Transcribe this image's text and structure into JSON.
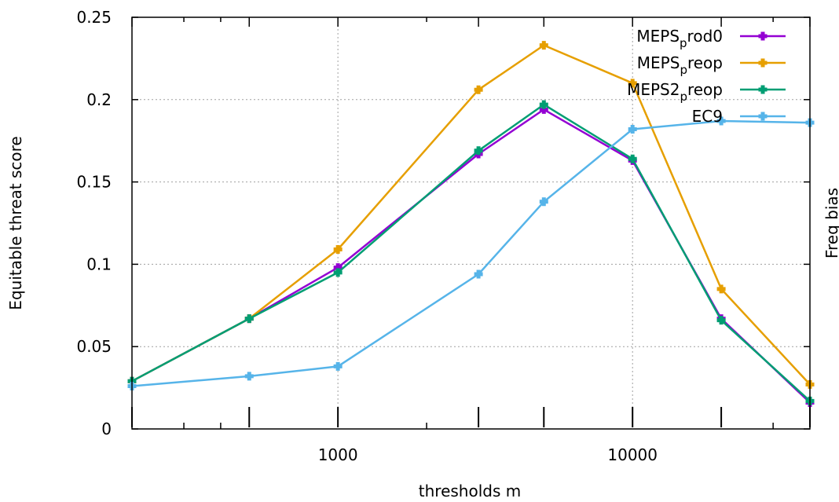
{
  "chart_data": {
    "type": "line",
    "title": "",
    "xlabel": "thresholds m",
    "ylabel": "Equitable threat score",
    "y2label": "Freq bias",
    "xscale": "log",
    "xlim": [
      200,
      40000
    ],
    "ylim": [
      0,
      0.25
    ],
    "grid": true,
    "legend_position": "top-right",
    "x_ticks": [
      {
        "value": 1000,
        "label": "1000"
      },
      {
        "value": 10000,
        "label": "10000"
      }
    ],
    "x_major_tick_marks": [
      200,
      500,
      1000,
      3000,
      5000,
      10000,
      20000,
      40000
    ],
    "x_minor_tick_marks": [
      300,
      400,
      2000,
      30000
    ],
    "y_ticks": [
      {
        "value": 0,
        "label": "0"
      },
      {
        "value": 0.05,
        "label": "0.05"
      },
      {
        "value": 0.1,
        "label": "0.1"
      },
      {
        "value": 0.15,
        "label": "0.15"
      },
      {
        "value": 0.2,
        "label": "0.2"
      },
      {
        "value": 0.25,
        "label": "0.25"
      }
    ],
    "x": [
      200,
      500,
      1000,
      3000,
      5000,
      10000,
      20000,
      40000
    ],
    "series": [
      {
        "name": "MEPS_prod0",
        "legend_main": "MEPS",
        "legend_sub": "p",
        "legend_tail": "rod0",
        "color": "#9400d3",
        "values": [
          0.029,
          0.067,
          0.098,
          0.167,
          0.194,
          0.163,
          0.067,
          0.016
        ]
      },
      {
        "name": "MEPS_preop",
        "legend_main": "MEPS",
        "legend_sub": "p",
        "legend_tail": "reop",
        "color": "#e69f00",
        "values": [
          0.029,
          0.067,
          0.109,
          0.206,
          0.233,
          0.21,
          0.085,
          0.027
        ]
      },
      {
        "name": "MEPS2_preop",
        "legend_main": "MEPS2",
        "legend_sub": "p",
        "legend_tail": "reop",
        "color": "#009e73",
        "values": [
          0.029,
          0.067,
          0.095,
          0.169,
          0.197,
          0.164,
          0.066,
          0.017
        ]
      },
      {
        "name": "EC9",
        "legend_main": "EC9",
        "legend_sub": "",
        "legend_tail": "",
        "color": "#56b4e9",
        "values": [
          0.026,
          0.032,
          0.038,
          0.094,
          0.138,
          0.182,
          0.187,
          0.186
        ]
      }
    ]
  }
}
